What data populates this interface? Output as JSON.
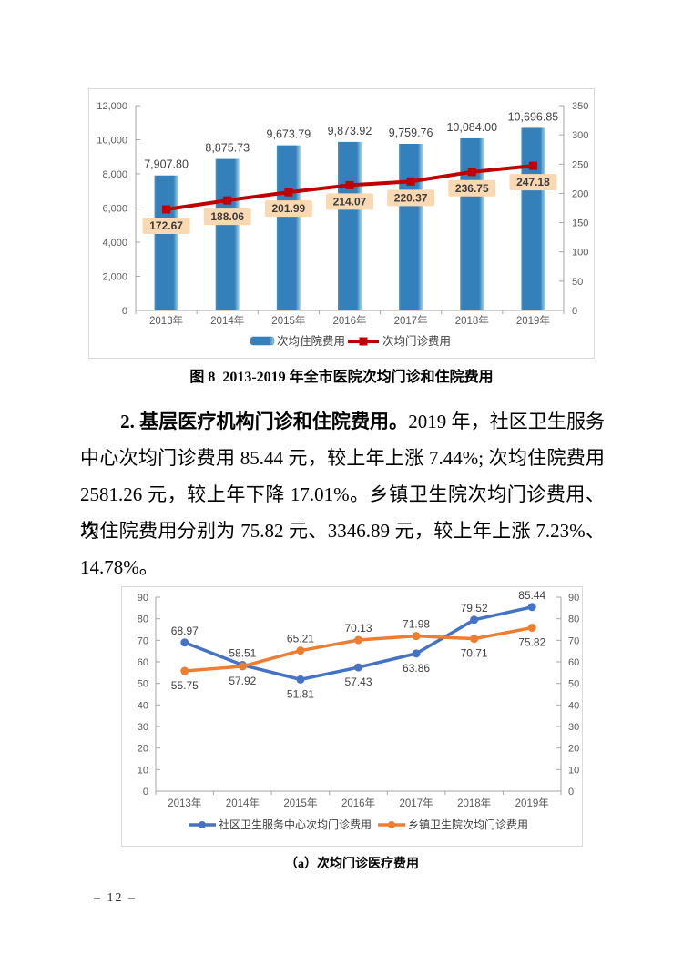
{
  "page": {
    "number_label": "– 12 –"
  },
  "figure8": {
    "caption": "图 8  2013-2019 年全市医院次均门诊和住院费用"
  },
  "figure_a": {
    "caption": "（a）次均门诊医疗费用"
  },
  "paragraph": {
    "lines": [
      {
        "indent": true,
        "fill": true,
        "segments": [
          {
            "text": "2. 基层医疗机构门诊和住院费用。",
            "bold": true
          },
          {
            "text": "2019 年，社区卫生服务",
            "bold": false
          }
        ]
      },
      {
        "indent": false,
        "fill": true,
        "segments": [
          {
            "text": "中心次均门诊费用 85.44 元，较上年上涨 7.44%; 次均住院费用",
            "bold": false
          }
        ]
      },
      {
        "indent": false,
        "fill": true,
        "segments": [
          {
            "text": "2581.26 元，较上年下降 17.01%。乡镇卫生院次均门诊费用、次",
            "bold": false
          }
        ]
      },
      {
        "indent": false,
        "fill": true,
        "segments": [
          {
            "text": "均住院费用分别为 75.82 元、3346.89 元，较上年上涨 7.23%、",
            "bold": false
          }
        ]
      },
      {
        "indent": false,
        "fill": false,
        "segments": [
          {
            "text": "14.78%。",
            "bold": false
          }
        ]
      }
    ]
  },
  "colors": {
    "bar_blue": "#3380BA",
    "bar_blue_light": "#9FD4EC",
    "bar_blue_edge": "#4890C2",
    "line_red": "#C00000",
    "line_label_bg": "#FAD9B2",
    "line_label_text": "#3A3A3A",
    "series_blue": "#4472C4",
    "series_orange": "#ED7D31",
    "axis_line": "#A6A6A6",
    "tick_text": "#595959",
    "value_text": "#404040",
    "box_border": "#D9D9D9"
  },
  "chart_data": [
    {
      "type": "bar",
      "title": "图 8  2013-2019 年全市医院次均门诊和住院费用",
      "categories": [
        "2013年",
        "2014年",
        "2015年",
        "2016年",
        "2017年",
        "2018年",
        "2019年"
      ],
      "series": [
        {
          "name": "次均住院费用",
          "kind": "bar",
          "axis": "left",
          "values": [
            7907.8,
            8875.73,
            9673.79,
            9873.92,
            9759.76,
            10084.0,
            10696.85
          ],
          "labels": [
            "7,907.80",
            "8,875.73",
            "9,673.79",
            "9,873.92",
            "9,759.76",
            "10,084.00",
            "10,696.85"
          ]
        },
        {
          "name": "次均门诊费用",
          "kind": "line",
          "axis": "right",
          "values": [
            172.67,
            188.06,
            201.99,
            214.07,
            220.37,
            236.75,
            247.18
          ],
          "labels": [
            "172.67",
            "188.06",
            "201.99",
            "214.07",
            "220.37",
            "236.75",
            "247.18"
          ]
        }
      ],
      "left_axis": {
        "min": 0,
        "max": 12000,
        "step": 2000
      },
      "right_axis": {
        "min": 0,
        "max": 350,
        "step": 50
      },
      "legend_position": "bottom",
      "grid": false
    },
    {
      "type": "line",
      "caption": "（a）次均门诊医疗费用",
      "categories": [
        "2013年",
        "2014年",
        "2015年",
        "2016年",
        "2017年",
        "2018年",
        "2019年"
      ],
      "series": [
        {
          "name": "社区卫生服务中心次均门诊费用",
          "values": [
            68.97,
            58.51,
            51.81,
            57.43,
            63.86,
            79.52,
            85.44
          ],
          "labels": [
            "68.97",
            "58.51",
            "51.81",
            "57.43",
            "63.86",
            "79.52",
            "85.44"
          ],
          "label_side": [
            "above",
            "above",
            "below",
            "below",
            "below",
            "above",
            "above"
          ]
        },
        {
          "name": "乡镇卫生院次均门诊费用",
          "values": [
            55.75,
            57.92,
            65.21,
            70.13,
            71.98,
            70.71,
            75.82
          ],
          "labels": [
            "55.75",
            "57.92",
            "65.21",
            "70.13",
            "71.98",
            "70.71",
            "75.82"
          ],
          "label_side": [
            "below",
            "below",
            "above",
            "above",
            "above",
            "below",
            "below"
          ]
        }
      ],
      "left_axis": {
        "min": 0,
        "max": 90,
        "step": 10
      },
      "right_axis": {
        "min": 0,
        "max": 90,
        "step": 10
      },
      "legend_position": "bottom",
      "grid": false
    }
  ]
}
